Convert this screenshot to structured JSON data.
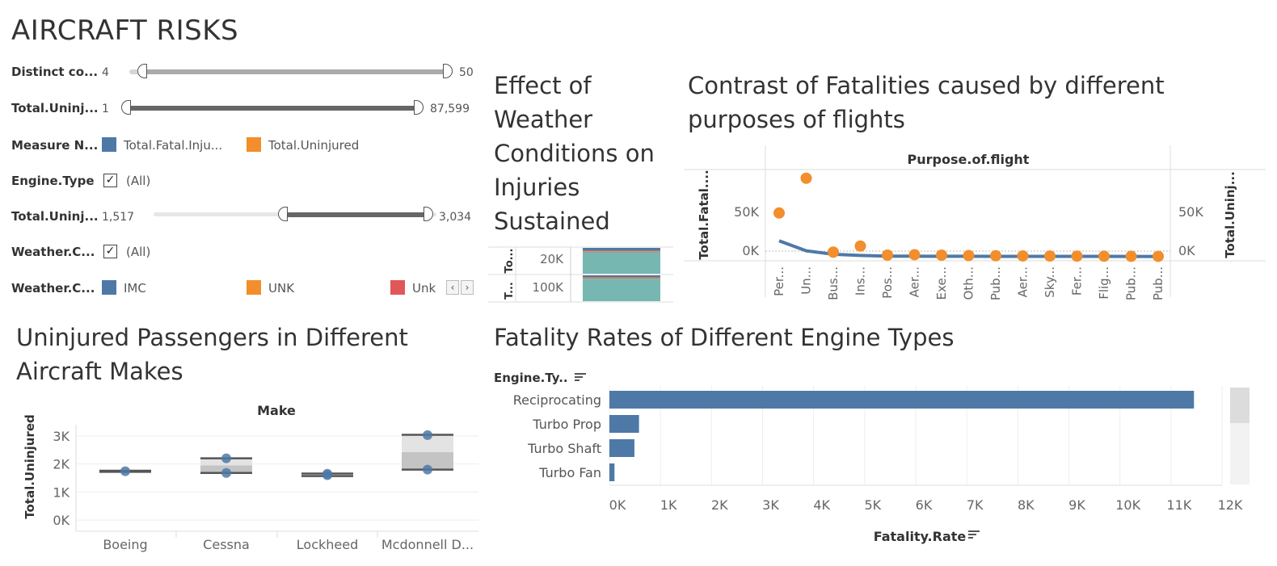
{
  "dashboard_title": "AIRCRAFT RISKS",
  "filters": {
    "distinct_count": {
      "label": "Distinct co...",
      "min": "4",
      "max": "50",
      "low_fraction": 0.0,
      "high_fraction": 1.0
    },
    "total_uninjured_1": {
      "label": "Total.Uninj...",
      "min": "1",
      "max": "87,599",
      "low_fraction": 0.0,
      "high_fraction": 1.0
    },
    "measure_names": {
      "label": "Measure N...",
      "items": [
        {
          "label": "Total.Fatal.Inju...",
          "color": "#4e79a7"
        },
        {
          "label": "Total.Uninjured",
          "color": "#f28e2b"
        }
      ]
    },
    "engine_type": {
      "label": "Engine.Type",
      "value": "(All)"
    },
    "total_uninjured_2": {
      "label": "Total.Uninj...",
      "min": "1,517",
      "max": "3,034",
      "low_fraction": 0.5,
      "high_fraction": 1.0
    },
    "weather_condition_filter": {
      "label": "Weather.C...",
      "value": "(All)"
    },
    "weather_condition_legend": {
      "label": "Weather.C...",
      "items": [
        {
          "label": "IMC",
          "color": "#4e79a7"
        },
        {
          "label": "UNK",
          "color": "#f28e2b"
        },
        {
          "label": "Unk",
          "color": "#e15759"
        }
      ]
    }
  },
  "colors": {
    "blue": "#4e79a7",
    "orange": "#f28e2b",
    "teal": "#76b7b2",
    "red": "#e15759",
    "grid": "#e6e6e6"
  },
  "charts": {
    "weather": {
      "title_lines": [
        "Effect of",
        "Weather",
        "Conditions on",
        "Injuries",
        "Sustained"
      ],
      "row_headers": [
        "To...",
        "T..."
      ],
      "tick_labels": [
        "20K",
        "100K"
      ]
    },
    "purpose": {
      "title_lines": [
        "Contrast of Fatalities caused by different",
        "purposes of flights"
      ],
      "header": "Purpose.of.flight",
      "left_axis_label": "Total.Fatal....",
      "right_axis_label": "Total.Uninj...",
      "ticks": [
        "50K",
        "0K"
      ],
      "right_ticks": [
        "50K",
        "0K"
      ],
      "categories": [
        "Per...",
        "Un...",
        "Bus...",
        "Ins...",
        "Pos...",
        "Aer...",
        "Exe...",
        "Oth...",
        "Pub...",
        "Aer...",
        "Sky...",
        "Fer...",
        "Flig...",
        "Pub...",
        "Pub..."
      ]
    },
    "makes": {
      "title_lines": [
        "Uninjured Passengers in Different",
        "Aircraft Makes"
      ],
      "header": "Make",
      "ylabel": "Total.Uninjured",
      "ticks": [
        "3K",
        "2K",
        "1K",
        "0K"
      ],
      "categories": [
        "Boeing",
        "Cessna",
        "Lockheed",
        "Mcdonnell D..."
      ]
    },
    "engine": {
      "title": "Fatality Rates of Different Engine Types",
      "row_header": "Engine.Ty..",
      "xlabel": "Fatality.Rate",
      "ticks": [
        "0K",
        "1K",
        "2K",
        "3K",
        "4K",
        "5K",
        "6K",
        "7K",
        "8K",
        "9K",
        "10K",
        "11K",
        "12K"
      ]
    }
  },
  "chart_data": [
    {
      "type": "bar",
      "title": "Effect of Weather Conditions on Injuries Sustained",
      "stacked": true,
      "rows": [
        "To...",
        "T..."
      ],
      "ticks": [
        20000,
        100000
      ],
      "series": [
        {
          "name": "IMC",
          "color": "#4e79a7",
          "values": [
            0.12,
            0.08
          ]
        },
        {
          "name": "UNK",
          "color": "#f28e2b",
          "values": [
            0.03,
            0.03
          ]
        },
        {
          "name": "Unk",
          "color": "#e15759",
          "values": [
            0.02,
            0.02
          ]
        },
        {
          "color": "#76b7b2",
          "values": [
            0.83,
            0.87
          ]
        }
      ]
    },
    {
      "type": "line",
      "title": "Contrast of Fatalities caused by different purposes of flights",
      "categories": [
        "Per...",
        "Un...",
        "Bus...",
        "Ins...",
        "Pos...",
        "Aer...",
        "Exe...",
        "Oth...",
        "Pub...",
        "Aer...",
        "Sky...",
        "Fer...",
        "Flig...",
        "Pub...",
        "Pub..."
      ],
      "ylim": [
        -5000,
        100000
      ],
      "series": [
        {
          "name": "Total.Fatal.Inju...",
          "type": "line",
          "color": "#4e79a7",
          "values": [
            18000,
            6500,
            2500,
            1200,
            400,
            300,
            250,
            200,
            150,
            120,
            100,
            80,
            60,
            50,
            40
          ]
        },
        {
          "name": "Total.Uninjured",
          "type": "scatter",
          "color": "#f28e2b",
          "values": [
            50000,
            90000,
            5000,
            12000,
            1500,
            2000,
            1500,
            1000,
            800,
            600,
            500,
            400,
            300,
            200,
            150
          ]
        }
      ]
    },
    {
      "type": "box",
      "title": "Uninjured Passengers in Different Aircraft Makes",
      "categories": [
        "Boeing",
        "Cessna",
        "Lockheed",
        "Mcdonnell D..."
      ],
      "ylim": [
        -400,
        3400
      ],
      "boxes": [
        {
          "min": 1720,
          "q1": 1720,
          "median": 1740,
          "q3": 1760,
          "max": 1760,
          "points": [
            1740
          ]
        },
        {
          "min": 1680,
          "q1": 1680,
          "median": 1950,
          "q3": 2200,
          "max": 2200,
          "points": [
            1680,
            2200
          ]
        },
        {
          "min": 1570,
          "q1": 1570,
          "median": 1610,
          "q3": 1660,
          "max": 1660,
          "points": [
            1600,
            1650
          ]
        },
        {
          "min": 1800,
          "q1": 1800,
          "median": 2420,
          "q3": 3040,
          "max": 3040,
          "points": [
            1800,
            3030
          ]
        }
      ]
    },
    {
      "type": "bar",
      "orientation": "horizontal",
      "title": "Fatality Rates of Different Engine Types",
      "categories": [
        "Reciprocating",
        "Turbo Prop",
        "Turbo Shaft",
        "Turbo Fan"
      ],
      "values": [
        11450,
        580,
        490,
        100
      ],
      "xlabel": "Fatality.Rate",
      "xlim": [
        0,
        12000
      ]
    }
  ]
}
